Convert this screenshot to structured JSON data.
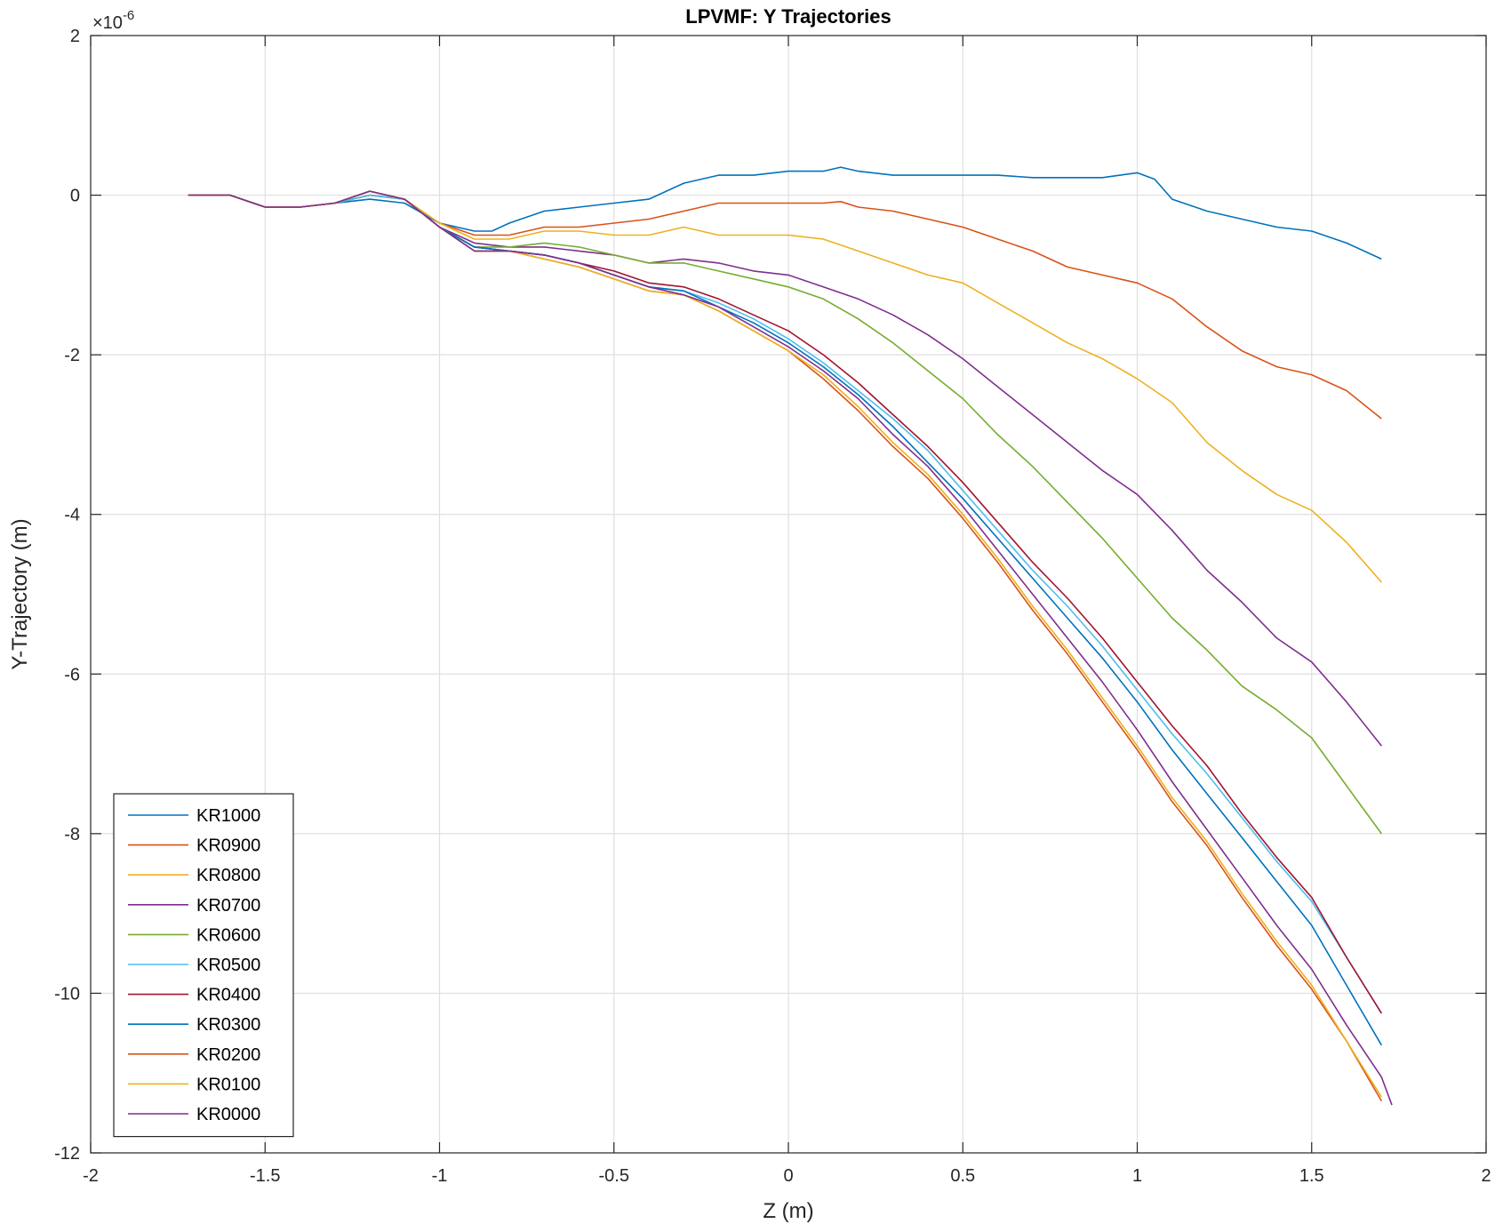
{
  "chart_data": {
    "type": "line",
    "title": "LPVMF: Y Trajectories",
    "xlabel": "Z (m)",
    "ylabel": "Y-Trajectory (m)",
    "y_exponent_label": "×10",
    "y_exponent_power": "-6",
    "xlim": [
      -2,
      2
    ],
    "ylim": [
      -12,
      2
    ],
    "y_scale_factor": 1e-06,
    "xticks": [
      -2,
      -1.5,
      -1,
      -0.5,
      0,
      0.5,
      1,
      1.5,
      2
    ],
    "xtick_labels": [
      "-2",
      "-1.5",
      "-1",
      "-0.5",
      "0",
      "0.5",
      "1",
      "1.5",
      "2"
    ],
    "yticks": [
      -12,
      -10,
      -8,
      -6,
      -4,
      -2,
      0,
      2
    ],
    "ytick_labels": [
      "-12",
      "-10",
      "-8",
      "-6",
      "-4",
      "-2",
      "0",
      "2"
    ],
    "grid": true,
    "legend_position": "bottom-left",
    "series": [
      {
        "name": "KR1000",
        "color": "#0072BD",
        "x": [
          -1.72,
          -1.6,
          -1.5,
          -1.4,
          -1.3,
          -1.2,
          -1.1,
          -1.0,
          -0.9,
          -0.85,
          -0.8,
          -0.7,
          -0.6,
          -0.5,
          -0.4,
          -0.3,
          -0.2,
          -0.1,
          0.0,
          0.1,
          0.15,
          0.2,
          0.3,
          0.4,
          0.5,
          0.6,
          0.7,
          0.8,
          0.9,
          1.0,
          1.05,
          1.1,
          1.2,
          1.3,
          1.4,
          1.5,
          1.6,
          1.7
        ],
        "y": [
          0.0,
          0.0,
          -0.15,
          -0.15,
          -0.1,
          -0.05,
          -0.1,
          -0.35,
          -0.45,
          -0.45,
          -0.35,
          -0.2,
          -0.15,
          -0.1,
          -0.05,
          0.15,
          0.25,
          0.25,
          0.3,
          0.3,
          0.35,
          0.3,
          0.25,
          0.25,
          0.25,
          0.25,
          0.22,
          0.22,
          0.22,
          0.28,
          0.2,
          -0.05,
          -0.2,
          -0.3,
          -0.4,
          -0.45,
          -0.6,
          -0.8
        ]
      },
      {
        "name": "KR0900",
        "color": "#D95319",
        "x": [
          -1.72,
          -1.6,
          -1.5,
          -1.4,
          -1.3,
          -1.2,
          -1.1,
          -1.0,
          -0.9,
          -0.8,
          -0.7,
          -0.6,
          -0.5,
          -0.4,
          -0.3,
          -0.2,
          -0.1,
          0.0,
          0.1,
          0.15,
          0.2,
          0.3,
          0.4,
          0.5,
          0.6,
          0.7,
          0.8,
          0.9,
          1.0,
          1.1,
          1.2,
          1.3,
          1.4,
          1.5,
          1.6,
          1.7
        ],
        "y": [
          0.0,
          0.0,
          -0.15,
          -0.15,
          -0.1,
          0.0,
          -0.05,
          -0.35,
          -0.5,
          -0.5,
          -0.4,
          -0.4,
          -0.35,
          -0.3,
          -0.2,
          -0.1,
          -0.1,
          -0.1,
          -0.1,
          -0.08,
          -0.15,
          -0.2,
          -0.3,
          -0.4,
          -0.55,
          -0.7,
          -0.9,
          -1.0,
          -1.1,
          -1.3,
          -1.65,
          -1.95,
          -2.15,
          -2.25,
          -2.45,
          -2.8
        ]
      },
      {
        "name": "KR0800",
        "color": "#EDB120",
        "x": [
          -1.72,
          -1.6,
          -1.5,
          -1.4,
          -1.3,
          -1.2,
          -1.1,
          -1.0,
          -0.9,
          -0.8,
          -0.7,
          -0.6,
          -0.5,
          -0.4,
          -0.3,
          -0.2,
          -0.1,
          0.0,
          0.1,
          0.2,
          0.3,
          0.4,
          0.5,
          0.6,
          0.7,
          0.8,
          0.9,
          1.0,
          1.1,
          1.2,
          1.3,
          1.4,
          1.5,
          1.6,
          1.7
        ],
        "y": [
          0.0,
          0.0,
          -0.15,
          -0.15,
          -0.1,
          0.0,
          -0.05,
          -0.35,
          -0.55,
          -0.55,
          -0.45,
          -0.45,
          -0.5,
          -0.5,
          -0.4,
          -0.5,
          -0.5,
          -0.5,
          -0.55,
          -0.7,
          -0.85,
          -1.0,
          -1.1,
          -1.35,
          -1.6,
          -1.85,
          -2.05,
          -2.3,
          -2.6,
          -3.1,
          -3.45,
          -3.75,
          -3.95,
          -4.35,
          -4.85
        ]
      },
      {
        "name": "KR0700",
        "color": "#7E2F8E",
        "x": [
          -1.72,
          -1.6,
          -1.5,
          -1.4,
          -1.3,
          -1.2,
          -1.1,
          -1.0,
          -0.9,
          -0.8,
          -0.7,
          -0.6,
          -0.5,
          -0.4,
          -0.3,
          -0.2,
          -0.1,
          0.0,
          0.1,
          0.2,
          0.3,
          0.4,
          0.5,
          0.6,
          0.7,
          0.8,
          0.9,
          1.0,
          1.1,
          1.2,
          1.3,
          1.4,
          1.5,
          1.6,
          1.7
        ],
        "y": [
          0.0,
          0.0,
          -0.15,
          -0.15,
          -0.1,
          0.0,
          -0.05,
          -0.4,
          -0.6,
          -0.65,
          -0.65,
          -0.7,
          -0.75,
          -0.85,
          -0.8,
          -0.85,
          -0.95,
          -1.0,
          -1.15,
          -1.3,
          -1.5,
          -1.75,
          -2.05,
          -2.4,
          -2.75,
          -3.1,
          -3.45,
          -3.75,
          -4.2,
          -4.7,
          -5.1,
          -5.55,
          -5.85,
          -6.35,
          -6.9
        ]
      },
      {
        "name": "KR0600",
        "color": "#77AC30",
        "x": [
          -1.72,
          -1.6,
          -1.5,
          -1.4,
          -1.3,
          -1.2,
          -1.1,
          -1.0,
          -0.9,
          -0.8,
          -0.7,
          -0.6,
          -0.5,
          -0.4,
          -0.3,
          -0.2,
          -0.1,
          0.0,
          0.1,
          0.2,
          0.3,
          0.4,
          0.5,
          0.6,
          0.7,
          0.8,
          0.9,
          1.0,
          1.1,
          1.2,
          1.3,
          1.4,
          1.5,
          1.6,
          1.7
        ],
        "y": [
          0.0,
          0.0,
          -0.15,
          -0.15,
          -0.1,
          0.0,
          -0.05,
          -0.4,
          -0.65,
          -0.65,
          -0.6,
          -0.65,
          -0.75,
          -0.85,
          -0.85,
          -0.95,
          -1.05,
          -1.15,
          -1.3,
          -1.55,
          -1.85,
          -2.2,
          -2.55,
          -3.0,
          -3.4,
          -3.85,
          -4.3,
          -4.8,
          -5.3,
          -5.7,
          -6.15,
          -6.45,
          -6.8,
          -7.4,
          -8.0
        ]
      },
      {
        "name": "KR0500",
        "color": "#4DBEEE",
        "x": [
          -1.72,
          -1.6,
          -1.5,
          -1.4,
          -1.3,
          -1.2,
          -1.1,
          -1.0,
          -0.9,
          -0.8,
          -0.7,
          -0.6,
          -0.5,
          -0.4,
          -0.3,
          -0.2,
          -0.1,
          0.0,
          0.1,
          0.2,
          0.3,
          0.4,
          0.5,
          0.6,
          0.7,
          0.8,
          0.9,
          1.0,
          1.1,
          1.2,
          1.3,
          1.4,
          1.5,
          1.6,
          1.7
        ],
        "y": [
          0.0,
          0.0,
          -0.15,
          -0.15,
          -0.1,
          0.0,
          -0.05,
          -0.4,
          -0.65,
          -0.7,
          -0.75,
          -0.85,
          -1.0,
          -1.15,
          -1.2,
          -1.35,
          -1.55,
          -1.8,
          -2.1,
          -2.45,
          -2.8,
          -3.2,
          -3.7,
          -4.2,
          -4.7,
          -5.15,
          -5.65,
          -6.2,
          -6.75,
          -7.25,
          -7.8,
          -8.35,
          -8.85,
          -9.55,
          -10.25
        ]
      },
      {
        "name": "KR0400",
        "color": "#A2142F",
        "x": [
          -1.72,
          -1.6,
          -1.5,
          -1.4,
          -1.3,
          -1.2,
          -1.1,
          -1.0,
          -0.9,
          -0.8,
          -0.7,
          -0.6,
          -0.5,
          -0.4,
          -0.3,
          -0.2,
          -0.1,
          0.0,
          0.1,
          0.2,
          0.3,
          0.4,
          0.5,
          0.6,
          0.7,
          0.8,
          0.9,
          1.0,
          1.1,
          1.2,
          1.3,
          1.4,
          1.5,
          1.6,
          1.7
        ],
        "y": [
          0.0,
          0.0,
          -0.15,
          -0.15,
          -0.1,
          0.05,
          -0.05,
          -0.4,
          -0.65,
          -0.7,
          -0.75,
          -0.85,
          -0.95,
          -1.1,
          -1.15,
          -1.3,
          -1.5,
          -1.7,
          -2.0,
          -2.35,
          -2.75,
          -3.15,
          -3.6,
          -4.1,
          -4.6,
          -5.05,
          -5.55,
          -6.1,
          -6.65,
          -7.15,
          -7.75,
          -8.3,
          -8.8,
          -9.55,
          -10.25
        ]
      },
      {
        "name": "KR0300",
        "color": "#0072BD",
        "x": [
          -1.72,
          -1.6,
          -1.5,
          -1.4,
          -1.3,
          -1.2,
          -1.1,
          -1.0,
          -0.9,
          -0.8,
          -0.7,
          -0.6,
          -0.5,
          -0.4,
          -0.3,
          -0.2,
          -0.1,
          0.0,
          0.1,
          0.2,
          0.3,
          0.4,
          0.5,
          0.6,
          0.7,
          0.8,
          0.9,
          1.0,
          1.1,
          1.2,
          1.3,
          1.4,
          1.5,
          1.6,
          1.7
        ],
        "y": [
          0.0,
          0.0,
          -0.15,
          -0.15,
          -0.1,
          0.05,
          -0.05,
          -0.4,
          -0.65,
          -0.7,
          -0.75,
          -0.85,
          -1.0,
          -1.15,
          -1.2,
          -1.4,
          -1.6,
          -1.85,
          -2.15,
          -2.5,
          -2.9,
          -3.35,
          -3.8,
          -4.3,
          -4.8,
          -5.3,
          -5.8,
          -6.35,
          -6.95,
          -7.5,
          -8.05,
          -8.6,
          -9.15,
          -9.9,
          -10.65
        ]
      },
      {
        "name": "KR0200",
        "color": "#D95319",
        "x": [
          -1.72,
          -1.6,
          -1.5,
          -1.4,
          -1.3,
          -1.2,
          -1.1,
          -1.0,
          -0.9,
          -0.8,
          -0.7,
          -0.6,
          -0.5,
          -0.4,
          -0.3,
          -0.2,
          -0.1,
          0.0,
          0.1,
          0.2,
          0.3,
          0.4,
          0.5,
          0.6,
          0.7,
          0.8,
          0.9,
          1.0,
          1.1,
          1.2,
          1.3,
          1.4,
          1.5,
          1.6,
          1.7
        ],
        "y": [
          0.0,
          0.0,
          -0.15,
          -0.15,
          -0.1,
          0.05,
          -0.05,
          -0.4,
          -0.7,
          -0.7,
          -0.8,
          -0.9,
          -1.05,
          -1.2,
          -1.25,
          -1.45,
          -1.7,
          -1.95,
          -2.3,
          -2.7,
          -3.15,
          -3.55,
          -4.05,
          -4.6,
          -5.2,
          -5.75,
          -6.35,
          -6.95,
          -7.6,
          -8.15,
          -8.8,
          -9.4,
          -9.95,
          -10.6,
          -11.35
        ]
      },
      {
        "name": "KR0100",
        "color": "#EDB120",
        "x": [
          -1.72,
          -1.6,
          -1.5,
          -1.4,
          -1.3,
          -1.2,
          -1.1,
          -1.0,
          -0.9,
          -0.8,
          -0.7,
          -0.6,
          -0.5,
          -0.4,
          -0.3,
          -0.2,
          -0.1,
          0.0,
          0.1,
          0.2,
          0.3,
          0.4,
          0.5,
          0.6,
          0.7,
          0.8,
          0.9,
          1.0,
          1.1,
          1.2,
          1.3,
          1.4,
          1.5,
          1.6,
          1.7
        ],
        "y": [
          0.0,
          0.0,
          -0.15,
          -0.15,
          -0.1,
          0.05,
          -0.05,
          -0.4,
          -0.7,
          -0.7,
          -0.8,
          -0.9,
          -1.05,
          -1.2,
          -1.25,
          -1.45,
          -1.7,
          -1.95,
          -2.25,
          -2.65,
          -3.1,
          -3.5,
          -4.0,
          -4.55,
          -5.15,
          -5.7,
          -6.3,
          -6.9,
          -7.55,
          -8.1,
          -8.75,
          -9.35,
          -9.9,
          -10.6,
          -11.3
        ]
      },
      {
        "name": "KR0000",
        "color": "#7E2F8E",
        "x": [
          -1.72,
          -1.6,
          -1.5,
          -1.4,
          -1.3,
          -1.2,
          -1.1,
          -1.0,
          -0.9,
          -0.8,
          -0.7,
          -0.6,
          -0.5,
          -0.4,
          -0.3,
          -0.2,
          -0.1,
          0.0,
          0.1,
          0.2,
          0.3,
          0.4,
          0.5,
          0.6,
          0.7,
          0.8,
          0.9,
          1.0,
          1.1,
          1.2,
          1.3,
          1.4,
          1.5,
          1.6,
          1.7,
          1.73
        ],
        "y": [
          0.0,
          0.0,
          -0.15,
          -0.15,
          -0.1,
          0.05,
          -0.05,
          -0.4,
          -0.7,
          -0.7,
          -0.75,
          -0.85,
          -1.0,
          -1.15,
          -1.25,
          -1.4,
          -1.65,
          -1.9,
          -2.2,
          -2.55,
          -3.0,
          -3.4,
          -3.9,
          -4.45,
          -5.0,
          -5.55,
          -6.1,
          -6.7,
          -7.35,
          -7.95,
          -8.55,
          -9.15,
          -9.7,
          -10.4,
          -11.05,
          -11.4
        ]
      }
    ]
  }
}
